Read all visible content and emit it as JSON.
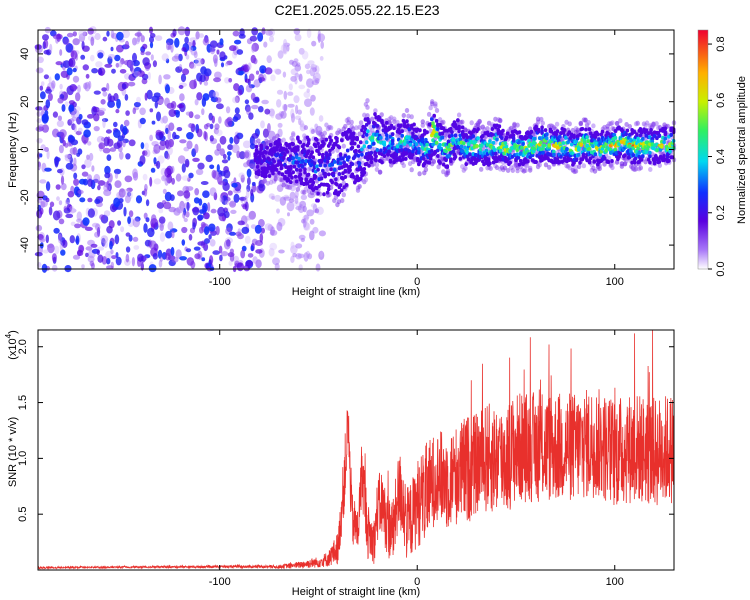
{
  "title": "C2E1.2025.055.22.15.E23",
  "chart_data": [
    {
      "type": "heatmap",
      "xlabel": "Height of straight line (km)",
      "ylabel": "Frequency (Hz)",
      "xlim": [
        -192,
        130
      ],
      "ylim": [
        -50,
        50
      ],
      "x_ticks": [
        -100,
        0,
        100
      ],
      "x_tick_labels": [
        "-100",
        "0",
        "100"
      ],
      "y_ticks": [
        -40,
        -20,
        0,
        20,
        40
      ],
      "y_tick_labels": [
        "-40",
        "-20",
        "0",
        "20",
        "40"
      ],
      "grid": false,
      "colorbar": {
        "label": "Normalized spectral amplitude",
        "range": [
          0.0,
          0.85
        ],
        "ticks": [
          0.0,
          0.2,
          0.4,
          0.6,
          0.8
        ],
        "tick_labels": [
          "0.0",
          "0.2",
          "0.4",
          "0.6",
          "0.8"
        ]
      },
      "noise_region_x": [
        -192,
        -60
      ],
      "ridge": {
        "x": [
          -82,
          -75,
          -70,
          -65,
          -60,
          -55,
          -50,
          -45,
          -40,
          -35,
          -30,
          -25,
          -20,
          -15,
          -10,
          -5,
          0,
          5,
          8,
          12,
          16,
          20,
          25,
          30,
          35,
          40,
          45,
          50,
          55,
          60,
          65,
          70,
          75,
          80,
          85,
          90,
          95,
          100,
          105,
          110,
          115,
          120,
          125,
          130
        ],
        "y": [
          -4,
          -5,
          -3,
          -6,
          -4,
          -5,
          -9,
          -6,
          -7,
          -3,
          -5,
          5,
          4,
          3,
          2,
          5,
          1,
          0,
          8,
          2,
          0,
          5,
          0,
          2,
          0,
          3,
          0,
          1,
          0,
          2,
          3,
          1,
          2,
          0,
          3,
          0,
          1,
          2,
          3,
          1,
          2,
          1,
          2,
          2
        ],
        "amplitude": [
          0.2,
          0.25,
          0.3,
          0.3,
          0.35,
          0.3,
          0.35,
          0.3,
          0.35,
          0.3,
          0.35,
          0.45,
          0.5,
          0.45,
          0.45,
          0.5,
          0.4,
          0.55,
          0.8,
          0.5,
          0.55,
          0.5,
          0.55,
          0.6,
          0.55,
          0.6,
          0.65,
          0.55,
          0.6,
          0.7,
          0.65,
          0.7,
          0.6,
          0.65,
          0.7,
          0.6,
          0.65,
          0.7,
          0.65,
          0.75,
          0.7,
          0.65,
          0.7,
          0.65
        ],
        "width_hz": [
          6,
          7,
          7,
          8,
          10,
          10,
          14,
          12,
          12,
          12,
          10,
          12,
          10,
          8,
          8,
          9,
          8,
          8,
          10,
          8,
          8,
          8,
          7,
          8,
          7,
          8,
          7,
          7,
          7,
          8,
          7,
          7,
          7,
          7,
          7,
          7,
          7,
          7,
          7,
          7,
          7,
          7,
          7,
          7
        ]
      }
    },
    {
      "type": "line",
      "xlabel": "Height of straight line (km)",
      "ylabel": "SNR (10 * v/v)",
      "y_multiplier": "(x10",
      "y_multiplier_exp": "4",
      "y_multiplier_close": ")",
      "xlim": [
        -192,
        130
      ],
      "ylim": [
        0,
        21500
      ],
      "x_ticks": [
        -100,
        0,
        100
      ],
      "x_tick_labels": [
        "-100",
        "0",
        "100"
      ],
      "y_ticks": [
        5000,
        10000,
        15000,
        20000
      ],
      "y_tick_labels": [
        "0.5",
        "1.0",
        "1.5",
        "2.0"
      ],
      "grid": false,
      "series": [
        {
          "color": "#e8302c",
          "x": [
            -192,
            -150,
            -100,
            -70,
            -60,
            -50,
            -45,
            -40,
            -37,
            -35,
            -33,
            -30,
            -28,
            -25,
            -22,
            -20,
            -18,
            -15,
            -12,
            -10,
            -8,
            -5,
            -2,
            0,
            5,
            10,
            15,
            20,
            25,
            30,
            35,
            40,
            45,
            50,
            60,
            70,
            80,
            90,
            100,
            110,
            120,
            130
          ],
          "y": [
            200,
            250,
            300,
            300,
            450,
            700,
            1000,
            2000,
            8000,
            13000,
            4500,
            3500,
            9000,
            3500,
            2500,
            5500,
            6000,
            4000,
            3500,
            6500,
            7000,
            4000,
            5000,
            6000,
            7000,
            8500,
            8000,
            8500,
            9000,
            9500,
            10000,
            10000,
            10000,
            11000,
            11000,
            11000,
            11000,
            11500,
            10500,
            11000,
            10500,
            11000
          ],
          "spread": [
            80,
            80,
            100,
            150,
            300,
            500,
            700,
            1500,
            3000,
            3000,
            2500,
            2000,
            3000,
            2500,
            2000,
            3000,
            3000,
            3000,
            3000,
            3500,
            4000,
            3500,
            3500,
            4000,
            4500,
            4000,
            4500,
            4500,
            5000,
            4500,
            5000,
            5000,
            5000,
            5000,
            5000,
            5000,
            5000,
            5000,
            5000,
            5000,
            5000,
            5000
          ],
          "max": 21200,
          "max_x": 110
        }
      ]
    }
  ]
}
